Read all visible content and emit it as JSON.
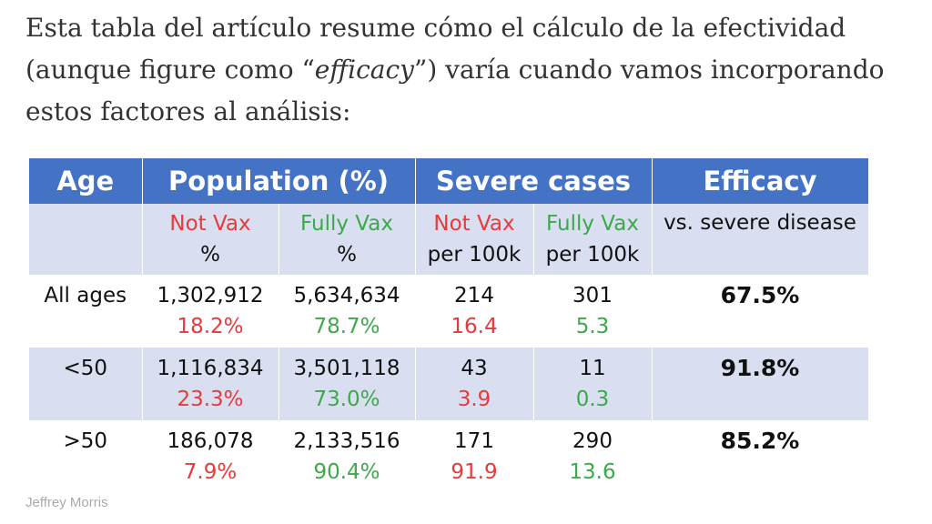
{
  "intro": {
    "before": "Esta tabla del artículo resume cómo el cálculo de la efectividad (aunque figure como “",
    "italic": "efficacy",
    "after": "”) varía cuando vamos incorporando estos factores al análisis:"
  },
  "table": {
    "headers": {
      "age": "Age",
      "population": "Population (%)",
      "severe": "Severe cases",
      "efficacy": "Efficacy"
    },
    "subheaders": {
      "pop_notvax": "Not Vax",
      "pop_notvax_unit": "%",
      "pop_fullyvax": "Fully Vax",
      "pop_fullyvax_unit": "%",
      "sev_notvax": "Not Vax",
      "sev_notvax_unit": "per 100k",
      "sev_fullyvax": "Fully Vax",
      "sev_fullyvax_unit": "per 100k",
      "efficacy_desc": "vs. severe disease"
    },
    "rows": [
      {
        "age": "All ages",
        "pop_notvax": "1,302,912",
        "pop_notvax_pct": "18.2%",
        "pop_fullyvax": "5,634,634",
        "pop_fullyvax_pct": "78.7%",
        "sev_notvax": "214",
        "sev_notvax_rate": "16.4",
        "sev_fullyvax": "301",
        "sev_fullyvax_rate": "5.3",
        "efficacy": "67.5%"
      },
      {
        "age": "<50",
        "pop_notvax": "1,116,834",
        "pop_notvax_pct": "23.3%",
        "pop_fullyvax": "3,501,118",
        "pop_fullyvax_pct": "73.0%",
        "sev_notvax": "43",
        "sev_notvax_rate": "3.9",
        "sev_fullyvax": "11",
        "sev_fullyvax_rate": "0.3",
        "efficacy": "91.8%"
      },
      {
        "age": ">50",
        "pop_notvax": "186,078",
        "pop_notvax_pct": "7.9%",
        "pop_fullyvax": "2,133,516",
        "pop_fullyvax_pct": "90.4%",
        "sev_notvax": "171",
        "sev_notvax_rate": "91.9",
        "sev_fullyvax": "290",
        "sev_fullyvax_rate": "13.6",
        "efficacy": "85.2%"
      }
    ]
  },
  "credit": "Jeffrey Morris",
  "colors": {
    "header_bg": "#4472c4",
    "band_bg": "#d9dff0",
    "not_vax": "#e83a3a",
    "fully_vax": "#3aaa4a"
  }
}
